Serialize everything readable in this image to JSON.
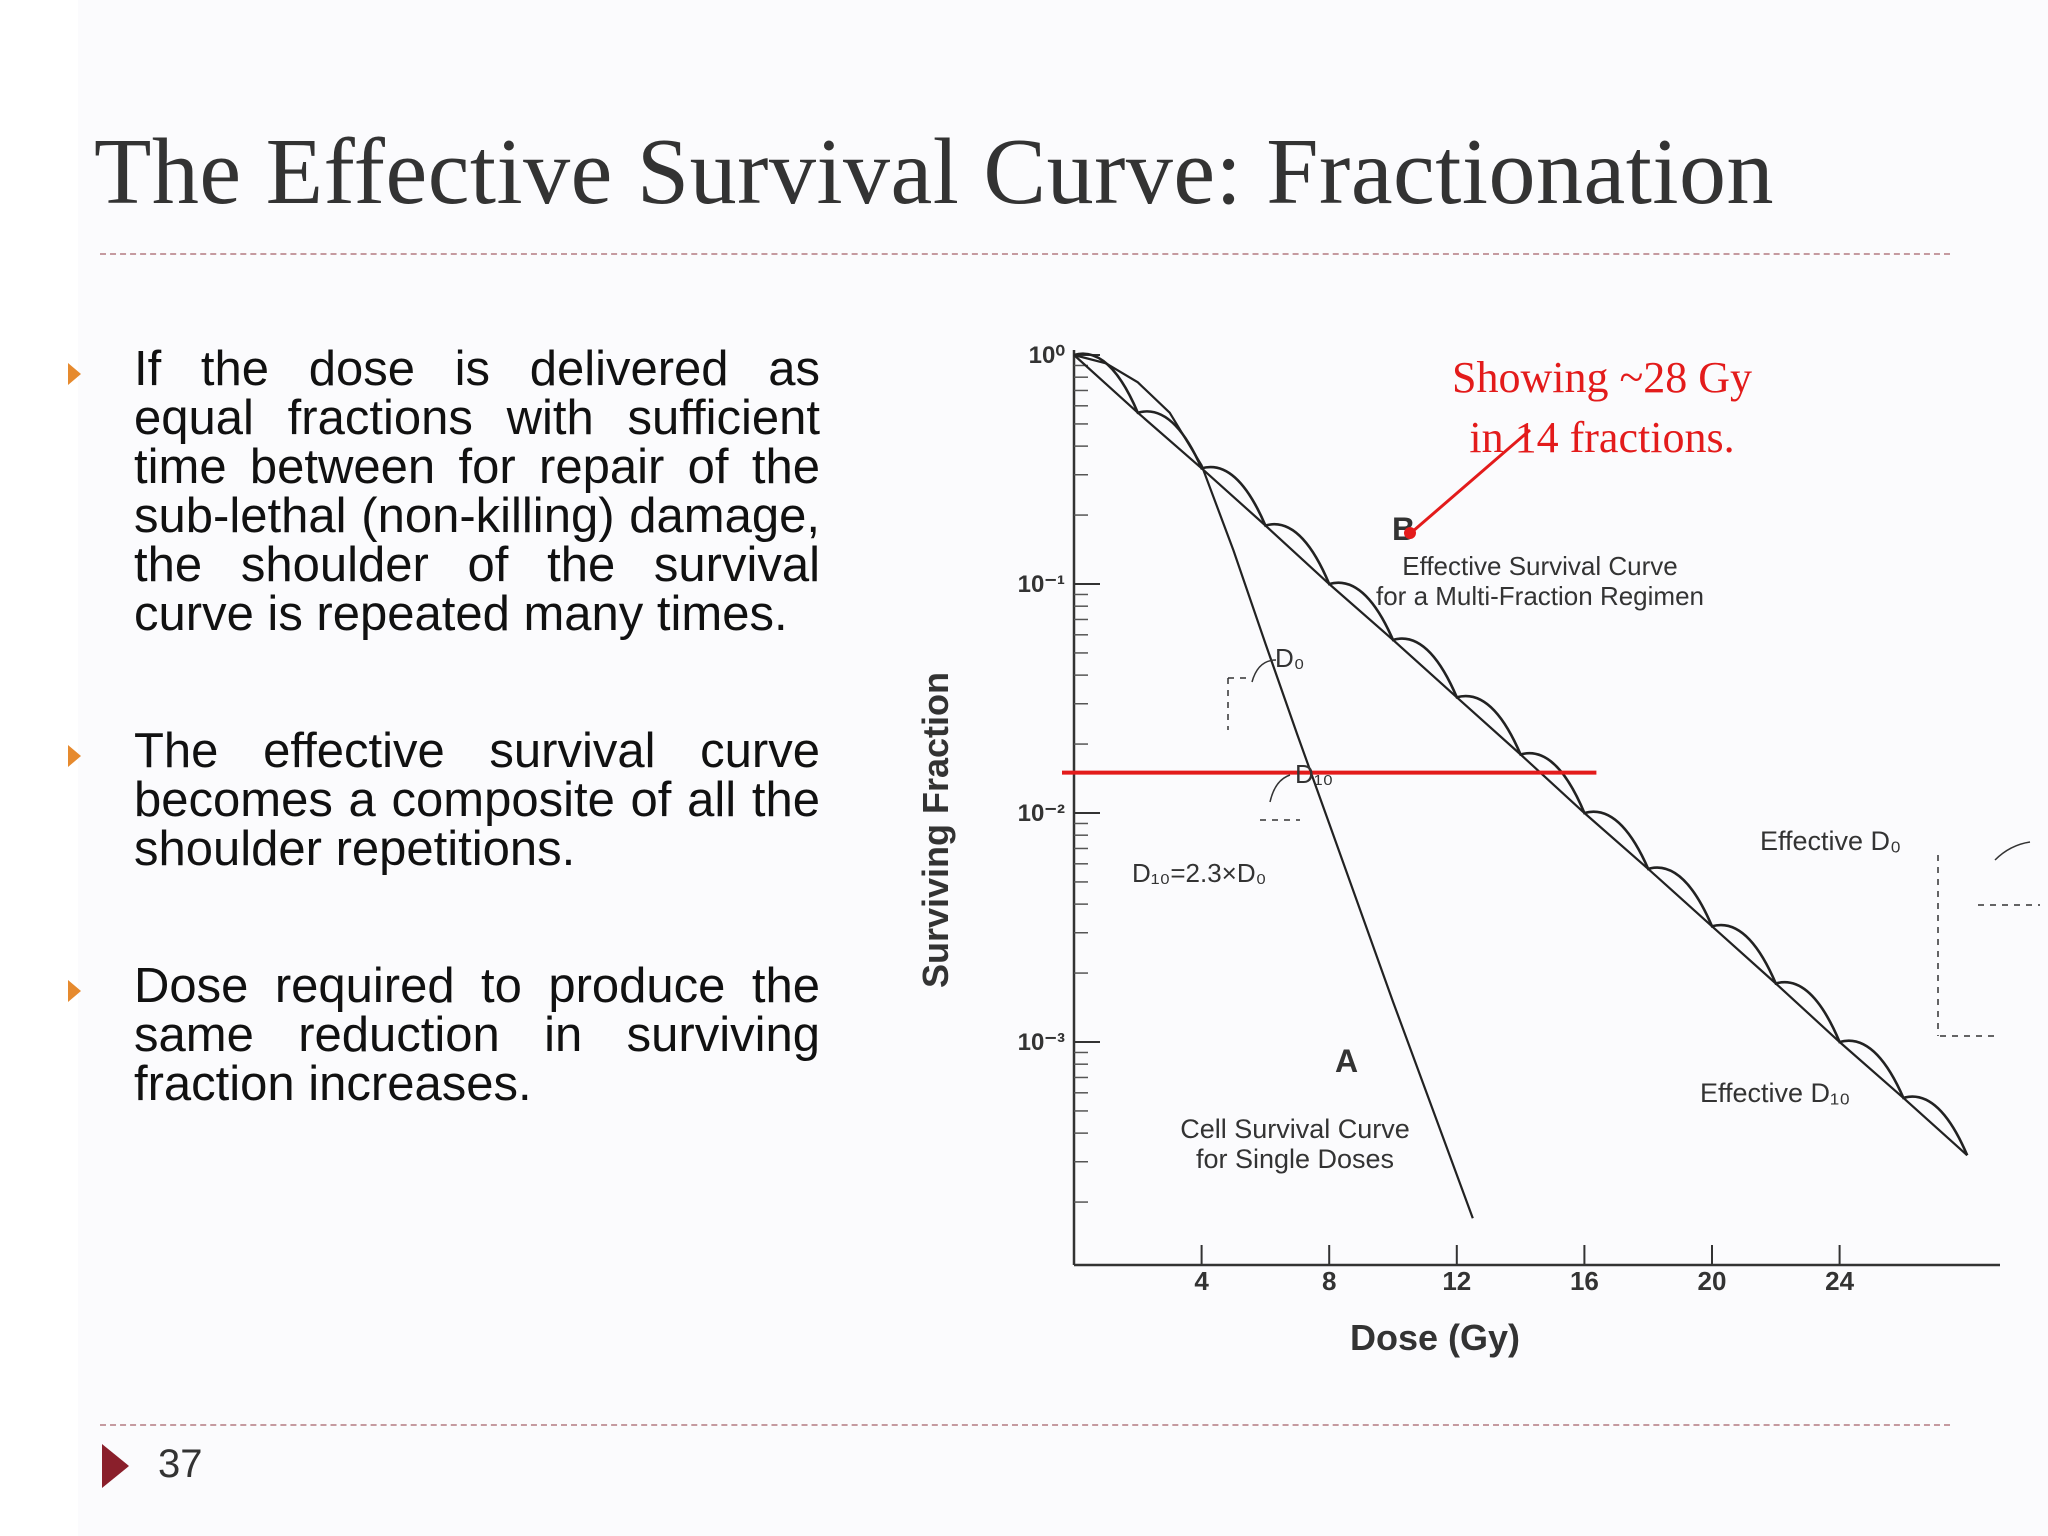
{
  "slide": {
    "title": "The Effective Survival Curve: Fractionation",
    "page_number": "37",
    "bullets": [
      "If the dose is delivered as equal fractions with sufficient time between for repair of the sub-lethal (non-killing) damage, the shoulder of the survival curve is repeated many times.",
      "The effective survival curve becomes a composite of all the shoulder repetitions.",
      "Dose required to produce the same reduction in surviving fraction increases."
    ],
    "colors": {
      "title": "#333333",
      "rule": "#c59aa0",
      "bullet_arrow": "#e68a2e",
      "footer_arrow": "#8a1f2b",
      "annotation": "#e31b1b"
    }
  },
  "figure": {
    "annotation": {
      "line1": "Showing ~28 Gy",
      "line2": "in 14 fractions."
    },
    "labels": {
      "curve_a": "A",
      "curve_b": "B",
      "eff_curve_line1": "Effective Survival Curve",
      "eff_curve_line2": "for a Multi-Fraction Regimen",
      "single_line1": "Cell Survival Curve",
      "single_line2": "for Single Doses",
      "d0": "D₀",
      "d10": "D₁₀",
      "d10_relation": "D₁₀=2.3×D₀",
      "effective_d0": "Effective D₀",
      "effective_d10": "Effective D₁₀"
    }
  },
  "chart_data": {
    "type": "line",
    "xlabel": "Dose (Gy)",
    "ylabel": "Surviving Fraction",
    "x_ticks": [
      "4",
      "8",
      "12",
      "16",
      "20",
      "24"
    ],
    "y_ticks": [
      "10⁰",
      "10⁻¹",
      "10⁻²",
      "10⁻³"
    ],
    "xlim": [
      0,
      29
    ],
    "ylim_log10": [
      -4,
      0
    ],
    "y_scale": "log",
    "series": [
      {
        "name": "A",
        "x": [
          0,
          1,
          2,
          3,
          4,
          5,
          6,
          7,
          8,
          10,
          12.5
        ],
        "y": [
          1.0,
          0.92,
          0.76,
          0.56,
          0.33,
          0.14,
          0.055,
          0.022,
          0.009,
          0.0015,
          0.00017
        ]
      },
      {
        "name": "B",
        "x": [
          0,
          2,
          4,
          6,
          8,
          10,
          12,
          14,
          16,
          18,
          20,
          22,
          24,
          26,
          28
        ],
        "y": [
          1.0,
          0.56,
          0.32,
          0.18,
          0.1,
          0.057,
          0.032,
          0.018,
          0.01,
          0.0057,
          0.0032,
          0.0018,
          0.001,
          0.00057,
          0.00032
        ]
      }
    ],
    "reference_line": {
      "y": 0.015,
      "x_range": [
        0,
        16
      ]
    },
    "grid": false
  }
}
